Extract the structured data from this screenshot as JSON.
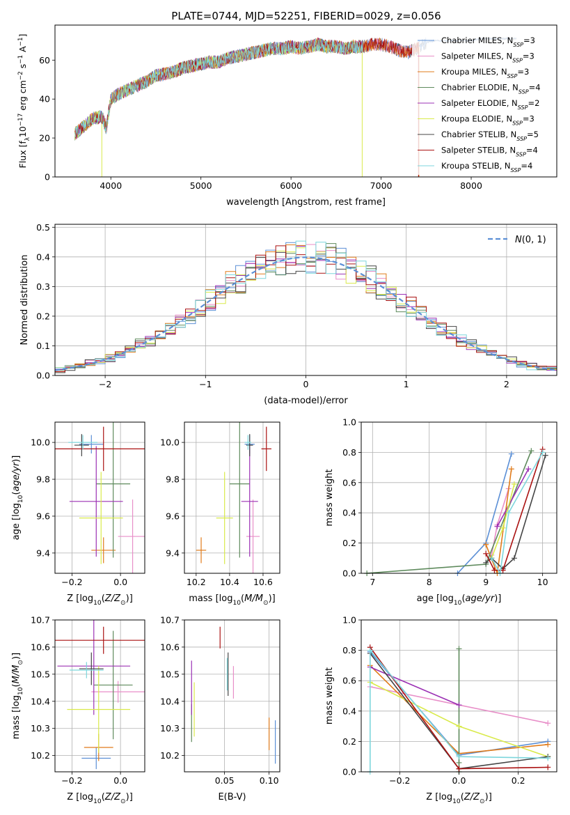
{
  "title": "PLATE=0744, MJD=52251, FIBERID=0029, z=0.056",
  "colors": [
    "#5b8fd6",
    "#e88ec8",
    "#e07b1a",
    "#5e8a5c",
    "#9b30b4",
    "#d9ea4a",
    "#444444",
    "#aa1111",
    "#7dd6dc"
  ],
  "chart_data": [
    {
      "id": "spectrum",
      "type": "line",
      "xlabel": "wavelength [Angstrom, rest frame]",
      "ylabel": "Flux [f_λ10^{-17} erg cm^{-2} s^{-1} A^{-1}]",
      "xlim": [
        3380,
        8950
      ],
      "ylim": [
        0,
        78
      ],
      "xticks": [
        "4000",
        "5000",
        "6000",
        "7000",
        "8000"
      ],
      "yticks": [
        "0",
        "20",
        "40",
        "60"
      ],
      "grid": false,
      "legend_position": "top-right",
      "continuum": {
        "x": [
          3600,
          3700,
          3800,
          3900,
          3950,
          4000,
          4100,
          4200,
          4300,
          4400,
          4500,
          4600,
          4700,
          4800,
          4900,
          5000,
          5100,
          5200,
          5300,
          5400,
          5500,
          5600,
          5700,
          5800,
          5900,
          6000,
          6100,
          6200,
          6300,
          6400,
          6500,
          6600,
          6700,
          6800,
          6900,
          7000,
          7100,
          7200,
          7300,
          7400,
          7500,
          7600,
          7700,
          7800,
          7900,
          8000,
          8100,
          8200,
          8300,
          8400,
          8500
        ],
        "y": [
          22,
          26,
          30,
          31,
          25,
          40,
          43,
          45,
          47,
          49,
          52,
          53,
          54,
          56,
          57,
          58,
          59,
          59,
          61,
          62,
          63,
          64,
          65,
          66,
          66,
          67,
          66,
          67,
          68,
          67,
          67,
          66,
          67,
          67,
          68,
          68,
          67,
          65,
          64,
          66,
          69,
          70,
          70,
          70,
          70,
          70,
          71,
          71,
          71,
          71,
          71
        ]
      },
      "series": [
        {
          "name": "Chabrier MILES, N_SSP=3",
          "end": 8500,
          "drops": []
        },
        {
          "name": "Salpeter MILES, N_SSP=3",
          "end": 7400,
          "drops": []
        },
        {
          "name": "Kroupa MILES, N_SSP=3",
          "end": 7420,
          "drops": [
            {
              "x": 7420,
              "y": 0
            }
          ]
        },
        {
          "name": "Chabrier ELODIE, N_SSP=4",
          "end": 6800,
          "drops": []
        },
        {
          "name": "Salpeter ELODIE, N_SSP=2",
          "end": 6800,
          "drops": []
        },
        {
          "name": "Kroupa ELODIE, N_SSP=3",
          "end": 6800,
          "drops": [
            {
              "x": 3900,
              "y": 0
            },
            {
              "x": 6790,
              "y": 0
            }
          ]
        },
        {
          "name": "Chabrier STELIB, N_SSP=5",
          "end": 8500,
          "drops": []
        },
        {
          "name": "Salpeter STELIB, N_SSP=4",
          "end": 7420,
          "drops": [
            {
              "x": 7415,
              "y": 0
            }
          ]
        },
        {
          "name": "Kroupa STELIB, N_SSP=4",
          "end": 6800,
          "drops": []
        }
      ]
    },
    {
      "id": "residuals",
      "type": "line",
      "xlabel": "(data-model)/error",
      "ylabel": "Normed distribution",
      "xlim": [
        -2.5,
        2.5
      ],
      "ylim": [
        0,
        0.51
      ],
      "xticks": [
        "−2",
        "−1",
        "0",
        "1",
        "2"
      ],
      "yticks": [
        "0.0",
        "0.1",
        "0.2",
        "0.3",
        "0.4",
        "0.5"
      ],
      "grid": true,
      "legend": {
        "label": "N(0,1)",
        "position": "top-right"
      },
      "bin_width": 0.1
    },
    {
      "id": "age-vs-Z",
      "type": "scatter",
      "xlabel": "Z [log10(Z/Z⊙)]",
      "ylabel": "age [log10(age/yr)]",
      "xlim": [
        -0.27,
        0.1
      ],
      "ylim": [
        9.29,
        10.11
      ],
      "xticks": [
        "−0.2",
        "0.0"
      ],
      "yticks": [
        "9.4",
        "9.6",
        "9.8",
        "10.0"
      ],
      "grid": true,
      "points": [
        {
          "x": -0.12,
          "y": 9.99,
          "xerr": 0.05,
          "yerr": 0.05
        },
        {
          "x": 0.05,
          "y": 9.49,
          "xerr": 0.06,
          "yerr": 0.2
        },
        {
          "x": -0.07,
          "y": 9.415,
          "xerr": 0.05,
          "yerr": 0.07
        },
        {
          "x": -0.03,
          "y": 9.775,
          "xerr": 0.07,
          "yerr": 0.4
        },
        {
          "x": -0.1,
          "y": 9.68,
          "xerr": 0.11,
          "yerr": 0.3
        },
        {
          "x": -0.08,
          "y": 9.59,
          "xerr": 0.09,
          "yerr": 0.25
        },
        {
          "x": -0.16,
          "y": 9.985,
          "xerr": 0.03,
          "yerr": 0.06
        },
        {
          "x": -0.07,
          "y": 9.965,
          "xerr": 0.21,
          "yerr": 0.12
        },
        {
          "x": -0.155,
          "y": 10.0,
          "xerr": 0.06,
          "yerr": 0.04
        }
      ]
    },
    {
      "id": "age-vs-mass",
      "type": "scatter",
      "xlabel": "mass [log10(M/M⊙)]",
      "ylabel": "",
      "xlim": [
        10.13,
        10.7
      ],
      "ylim": [
        9.29,
        10.11
      ],
      "xticks": [
        "10.2",
        "10.4",
        "10.6"
      ],
      "yticks": [
        "9.4",
        "9.6",
        "9.8",
        "10.0"
      ],
      "grid": true,
      "points": [
        {
          "x": 10.52,
          "y": 9.99,
          "xerr": 0.03,
          "yerr": 0.05
        },
        {
          "x": 10.54,
          "y": 9.49,
          "xerr": 0.04,
          "yerr": 0.2
        },
        {
          "x": 10.23,
          "y": 9.415,
          "xerr": 0.03,
          "yerr": 0.07
        },
        {
          "x": 10.46,
          "y": 9.775,
          "xerr": 0.06,
          "yerr": 0.4
        },
        {
          "x": 10.52,
          "y": 9.68,
          "xerr": 0.05,
          "yerr": 0.3
        },
        {
          "x": 10.37,
          "y": 9.59,
          "xerr": 0.05,
          "yerr": 0.25
        },
        {
          "x": 10.52,
          "y": 9.985,
          "xerr": 0.02,
          "yerr": 0.06
        },
        {
          "x": 10.62,
          "y": 9.965,
          "xerr": 0.03,
          "yerr": 0.12
        },
        {
          "x": 10.51,
          "y": 10.0,
          "xerr": 0.02,
          "yerr": 0.04
        }
      ]
    },
    {
      "id": "massweight-vs-age",
      "type": "line",
      "xlabel": "age [log10(age/yr)]",
      "ylabel": "mass weight",
      "xlim": [
        6.8,
        10.25
      ],
      "ylim": [
        0,
        1.0
      ],
      "xticks": [
        "7",
        "8",
        "9",
        "10"
      ],
      "yticks": [
        "0.0",
        "0.2",
        "0.4",
        "0.6",
        "0.8",
        "1.0"
      ],
      "grid": true,
      "series": [
        {
          "x": [
            8.5,
            9.0,
            9.45
          ],
          "y": [
            0.0,
            0.2,
            0.79
          ]
        },
        {
          "x": [
            9.1,
            9.2,
            9.4
          ],
          "y": [
            0.12,
            0.32,
            0.56
          ]
        },
        {
          "x": [
            9.0,
            9.2,
            9.45
          ],
          "y": [
            0.19,
            0.0,
            0.69
          ]
        },
        {
          "x": [
            6.9,
            9.0,
            9.8
          ],
          "y": [
            0.0,
            0.06,
            0.81
          ]
        },
        {
          "x": [
            9.2,
            9.75
          ],
          "y": [
            0.31,
            0.69
          ]
        },
        {
          "x": [
            9.1,
            9.3,
            9.5
          ],
          "y": [
            0.1,
            0.3,
            0.59
          ]
        },
        {
          "x": [
            9.0,
            9.1,
            9.3,
            9.5,
            10.05
          ],
          "y": [
            0.07,
            0.1,
            0.03,
            0.1,
            0.78
          ]
        },
        {
          "x": [
            9.0,
            9.15,
            9.3,
            10.0
          ],
          "y": [
            0.13,
            0.02,
            0.02,
            0.82
          ]
        },
        {
          "x": [
            9.1,
            9.25,
            9.4,
            10.0
          ],
          "y": [
            0.1,
            0.0,
            0.4,
            0.8
          ]
        }
      ]
    },
    {
      "id": "mass-vs-Z",
      "type": "scatter",
      "xlabel": "Z [log10(Z/Z⊙)]",
      "ylabel": "mass [log10(M/M⊙)]",
      "xlim": [
        -0.27,
        0.1
      ],
      "ylim": [
        10.14,
        10.7
      ],
      "xticks": [
        "−0.2",
        "0.0"
      ],
      "yticks": [
        "10.2",
        "10.3",
        "10.4",
        "10.5",
        "10.6",
        "10.7"
      ],
      "grid": true,
      "points": [
        {
          "x": -0.1,
          "y": 10.19,
          "xerr": 0.06,
          "yerr": 0.04
        },
        {
          "x": -0.01,
          "y": 10.435,
          "xerr": 0.11,
          "yerr": 0.04
        },
        {
          "x": -0.09,
          "y": 10.23,
          "xerr": 0.06,
          "yerr": 0.05
        },
        {
          "x": -0.03,
          "y": 10.46,
          "xerr": 0.08,
          "yerr": 0.2
        },
        {
          "x": -0.11,
          "y": 10.53,
          "xerr": 0.15,
          "yerr": 0.18
        },
        {
          "x": -0.09,
          "y": 10.37,
          "xerr": 0.13,
          "yerr": 0.16
        },
        {
          "x": -0.12,
          "y": 10.52,
          "xerr": 0.05,
          "yerr": 0.06
        },
        {
          "x": -0.07,
          "y": 10.625,
          "xerr": 0.21,
          "yerr": 0.05
        },
        {
          "x": -0.14,
          "y": 10.515,
          "xerr": 0.07,
          "yerr": 0.03
        }
      ]
    },
    {
      "id": "mass-vs-EBV",
      "type": "scatter",
      "xlabel": "E(B-V)",
      "ylabel": "",
      "xlim": [
        0.005,
        0.112
      ],
      "ylim": [
        10.14,
        10.7
      ],
      "xticks": [
        "0.05",
        "0.10"
      ],
      "yticks": [
        "10.2",
        "10.3",
        "10.4",
        "10.5",
        "10.6",
        "10.7"
      ],
      "grid": true,
      "points": [
        {
          "x": 0.107,
          "y": 10.25,
          "xerr": 0,
          "yerr": 0.08
        },
        {
          "x": 0.06,
          "y": 10.47,
          "xerr": 0,
          "yerr": 0.06
        },
        {
          "x": 0.1,
          "y": 10.28,
          "xerr": 0,
          "yerr": 0.06
        },
        {
          "x": 0.013,
          "y": 10.32,
          "xerr": 0,
          "yerr": 0.07
        },
        {
          "x": 0.013,
          "y": 10.45,
          "xerr": 0,
          "yerr": 0.1
        },
        {
          "x": 0.016,
          "y": 10.37,
          "xerr": 0,
          "yerr": 0.1
        },
        {
          "x": 0.054,
          "y": 10.5,
          "xerr": 0,
          "yerr": 0.08
        },
        {
          "x": 0.045,
          "y": 10.635,
          "xerr": 0,
          "yerr": 0.04
        },
        {
          "x": 0.053,
          "y": 10.5,
          "xerr": 0,
          "yerr": 0.06
        }
      ]
    },
    {
      "id": "massweight-vs-Z",
      "type": "line",
      "xlabel": "Z [log10(Z/Z⊙)]",
      "ylabel": "mass weight",
      "xlim": [
        -0.33,
        0.33
      ],
      "ylim": [
        0,
        1.0
      ],
      "xticks": [
        "−0.2",
        "0.0",
        "0.2"
      ],
      "yticks": [
        "0.0",
        "0.2",
        "0.4",
        "0.6",
        "0.8",
        "1.0"
      ],
      "grid": true,
      "series": [
        {
          "x": [
            -0.3,
            0.0,
            0.3
          ],
          "y": [
            0.79,
            0.11,
            0.2
          ]
        },
        {
          "x": [
            -0.3,
            0.3
          ],
          "y": [
            0.56,
            0.32
          ]
        },
        {
          "x": [
            -0.3,
            0.0,
            0.3
          ],
          "y": [
            0.7,
            0.12,
            0.18
          ]
        },
        {
          "x": [
            0.0,
            0.0,
            0.0
          ],
          "y": [
            0.0,
            0.06,
            0.81
          ]
        },
        {
          "x": [
            -0.3,
            0.0
          ],
          "y": [
            0.69,
            0.44
          ]
        },
        {
          "x": [
            -0.3,
            0.0,
            0.3
          ],
          "y": [
            0.59,
            0.3,
            0.1
          ]
        },
        {
          "x": [
            -0.3,
            0.0,
            0.3
          ],
          "y": [
            0.78,
            0.02,
            0.1
          ]
        },
        {
          "x": [
            -0.3,
            0.0,
            0.3
          ],
          "y": [
            0.82,
            0.02,
            0.03
          ]
        },
        {
          "x": [
            -0.3,
            -0.3,
            0.0,
            0.3
          ],
          "y": [
            0.0,
            0.8,
            0.1,
            0.09
          ]
        }
      ]
    }
  ]
}
